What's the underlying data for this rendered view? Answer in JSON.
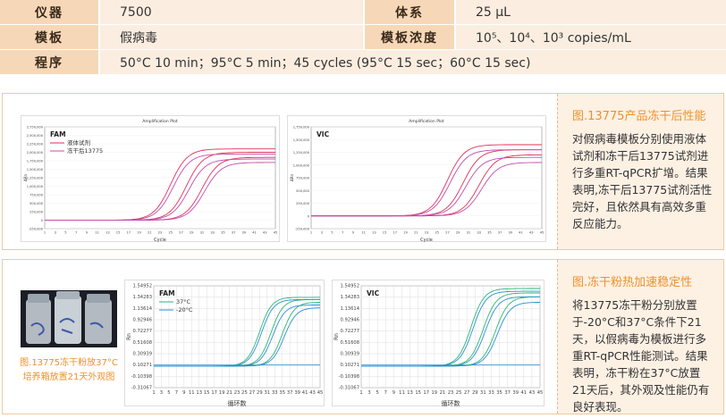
{
  "spec": {
    "row1": {
      "k1": "仪器",
      "v1": "7500",
      "k2": "体系",
      "v2": "25 µL"
    },
    "row2": {
      "k1": "模板",
      "v1": "假病毒",
      "k2": "模板浓度",
      "v2": "10⁵、10⁴、10³ copies/mL"
    },
    "row3": {
      "k1": "程序",
      "v1": "50°C 10 min；95°C 5 min；45 cycles (95°C 15 sec；60°C 15 sec)"
    }
  },
  "panel1": {
    "side_title": "图.13775产品冻干后性能",
    "side_text": "对假病毒模板分别使用液体试剂和冻干后13775试剂进行多重RT-qPCR扩增。结果表明,冻干后13775试剂活性完好，且依然具有高效多重反应能力。",
    "chart_fam_label": "FAM",
    "chart_vic_label": "VIC",
    "chart_title": "Amplification Plot",
    "x_label": "Cycle",
    "y_label": "ΔRn",
    "legend": [
      "液体试剂",
      "冻干后13775"
    ]
  },
  "panel2": {
    "side_title": "图.冻干粉热加速稳定性",
    "side_text": "将13775冻干粉分别放置于-20°C和37°C条件下21天，以假病毒为模板进行多重RT-qPCR性能测试。结果表明，冻干粉在37°C放置21天后，其外观及性能仍有良好表现。",
    "photo_caption": "图.13775冻干粉放37°C培养箱放置21天外观图",
    "chart_fam_label": "FAM",
    "chart_vic_label": "VIC",
    "x_label": "循环数",
    "y_label": "Rn",
    "legend": [
      "37°C",
      "-20°C"
    ]
  },
  "colors": {
    "accent": "#f0902a",
    "key_bg": "#f6d8b8",
    "val_bg": "#fbeee0",
    "red": "#e0315a",
    "pink": "#c04cb0",
    "green": "#2bb673",
    "blue": "#2a8fd6"
  },
  "chart_data": [
    {
      "type": "line",
      "title": "Amplification Plot",
      "subtitle": "FAM",
      "xlabel": "Cycle",
      "ylabel": "ΔRn",
      "xlim": [
        1,
        45
      ],
      "ylim": [
        -250000,
        2750000
      ],
      "y_ticks": [
        "2,750,000",
        "2,500,000",
        "2,250,000",
        "2,000,000",
        "1,750,000",
        "1,500,000",
        "1,250,000",
        "1,000,000",
        "750,000",
        "500,000",
        "250,000",
        "0",
        "-250,000"
      ],
      "series": [
        {
          "name": "液体试剂",
          "ct": [
            25,
            28,
            31
          ],
          "plateau": [
            2100000,
            2000000,
            1850000
          ]
        },
        {
          "name": "冻干后13775",
          "ct": [
            25.5,
            28.5,
            31.5
          ],
          "plateau": [
            1950000,
            1800000,
            1700000
          ]
        }
      ]
    },
    {
      "type": "line",
      "title": "Amplification Plot",
      "subtitle": "VIC",
      "xlabel": "Cycle",
      "ylabel": "ΔRn",
      "xlim": [
        1,
        45
      ],
      "ylim": [
        -250000,
        1750000
      ],
      "y_ticks": [
        "1,750,000",
        "1,500,000",
        "1,250,000",
        "1,000,000",
        "750,000",
        "500,000",
        "250,000",
        "0",
        "-250,000"
      ],
      "series": [
        {
          "name": "液体试剂",
          "ct": [
            27,
            30,
            33
          ],
          "plateau": [
            1400000,
            1300000,
            1200000
          ]
        },
        {
          "name": "冻干后13775",
          "ct": [
            27.5,
            30.5,
            33.5
          ],
          "plateau": [
            1300000,
            1150000,
            1050000
          ]
        }
      ]
    },
    {
      "type": "line",
      "subtitle": "FAM",
      "xlabel": "循环数",
      "ylabel": "Rn",
      "xlim": [
        1,
        45
      ],
      "ylim": [
        -0.31067,
        1.54952
      ],
      "y_ticks": [
        "1.54952",
        "1.34283",
        "1.13614",
        "0.92946",
        "0.72277",
        "0.51608",
        "0.30939",
        "0.10271",
        "-0.10398",
        "-0.31067"
      ],
      "x_ticks": [
        "1",
        "3",
        "5",
        "7",
        "9",
        "11",
        "13",
        "15",
        "17",
        "19",
        "21",
        "23",
        "25",
        "27",
        "29",
        "31",
        "33",
        "35",
        "37",
        "39",
        "41",
        "43",
        "45"
      ],
      "threshold": 0.10271,
      "series": [
        {
          "name": "37°C",
          "ct": [
            29,
            32,
            35
          ],
          "plateau": [
            1.34,
            1.3,
            1.25
          ]
        },
        {
          "name": "-20°C",
          "ct": [
            29.5,
            32.5,
            35.5
          ],
          "plateau": [
            1.3,
            1.2,
            1.15
          ]
        }
      ]
    },
    {
      "type": "line",
      "subtitle": "VIC",
      "xlabel": "循环数",
      "ylabel": "Rn",
      "xlim": [
        1,
        45
      ],
      "ylim": [
        -0.31067,
        1.54952
      ],
      "y_ticks": [
        "1.54952",
        "1.34283",
        "1.13614",
        "0.92946",
        "0.72277",
        "0.51608",
        "0.30939",
        "0.10271",
        "-0.10398",
        "-0.31067"
      ],
      "x_ticks": [
        "1",
        "3",
        "5",
        "7",
        "9",
        "11",
        "13",
        "15",
        "17",
        "19",
        "21",
        "23",
        "25",
        "27",
        "29",
        "31",
        "33",
        "35",
        "37",
        "39",
        "41",
        "43",
        "45"
      ],
      "threshold": 0.10271,
      "series": [
        {
          "name": "37°C",
          "ct": [
            28,
            31,
            34
          ],
          "plateau": [
            1.5,
            1.42,
            1.35
          ]
        },
        {
          "name": "-20°C",
          "ct": [
            28.5,
            31.5,
            34.5
          ],
          "plateau": [
            1.45,
            1.35,
            1.25
          ]
        }
      ]
    }
  ]
}
